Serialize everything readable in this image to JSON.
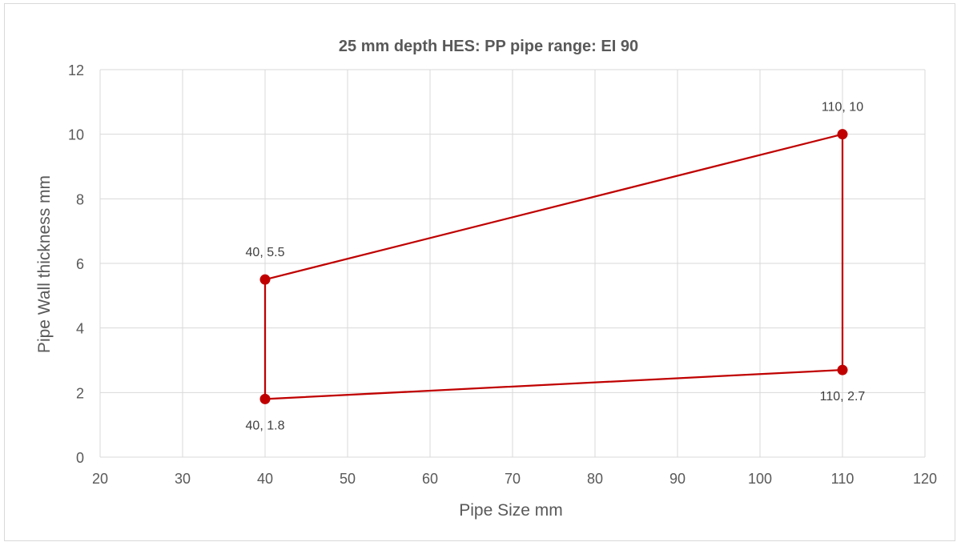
{
  "chart_data": {
    "type": "scatter",
    "title": "25 mm depth HES: PP pipe range: EI 90",
    "xlabel": "Pipe Size mm",
    "ylabel": "Pipe Wall thickness mm",
    "xlim": [
      20,
      120
    ],
    "ylim": [
      0,
      12
    ],
    "x_ticks": [
      20,
      30,
      40,
      50,
      60,
      70,
      80,
      90,
      100,
      110,
      120
    ],
    "y_ticks": [
      0,
      2,
      4,
      6,
      8,
      10,
      12
    ],
    "grid": true,
    "legend": "none",
    "series": [
      {
        "color": "#c00000",
        "points": [
          {
            "x": 40,
            "y": 5.5,
            "label": "40, 5.5",
            "label_pos": "above"
          },
          {
            "x": 110,
            "y": 10,
            "label": "110, 10",
            "label_pos": "above"
          },
          {
            "x": 110,
            "y": 2.7,
            "label": "110, 2.7",
            "label_pos": "below"
          },
          {
            "x": 40,
            "y": 1.8,
            "label": "40, 1.8",
            "label_pos": "below"
          },
          {
            "x": 40,
            "y": 5.5,
            "label": "",
            "label_pos": "none"
          }
        ]
      }
    ]
  }
}
